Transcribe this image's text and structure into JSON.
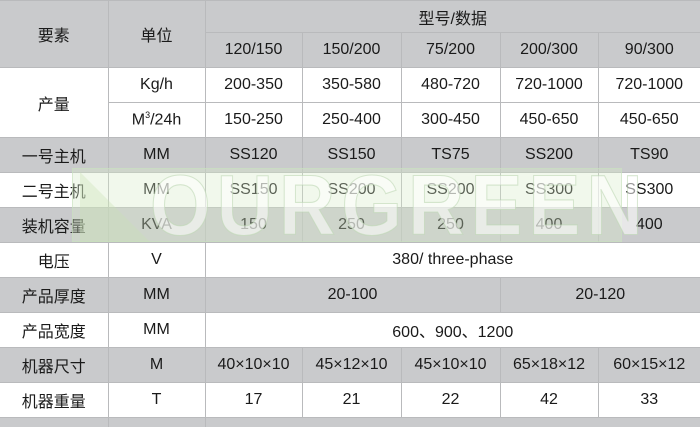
{
  "watermark": "OURGREEN",
  "header": {
    "element": "要素",
    "unit": "单位",
    "model_data": "型号/数据",
    "models": [
      "120/150",
      "150/200",
      "75/200",
      "200/300",
      "90/300"
    ]
  },
  "output": {
    "label": "产量",
    "rows": [
      {
        "unit": "Kg/h",
        "values": [
          "200-350",
          "350-580",
          "480-720",
          "720-1000",
          "720-1000"
        ]
      },
      {
        "unit_base": "M",
        "unit_sup": "3",
        "unit_rest": "/24h",
        "values": [
          "150-250",
          "250-400",
          "300-450",
          "450-650",
          "450-650"
        ]
      }
    ]
  },
  "rows": [
    {
      "label": "一号主机",
      "unit": "MM",
      "values": [
        "SS120",
        "SS150",
        "TS75",
        "SS200",
        "TS90"
      ]
    },
    {
      "label": "二号主机",
      "unit": "MM",
      "values": [
        "SS150",
        "SS200",
        "SS200",
        "SS300",
        "SS300"
      ]
    },
    {
      "label": "装机容量",
      "unit": "KVA",
      "values": [
        "150",
        "250",
        "250",
        "400",
        "400"
      ]
    }
  ],
  "voltage": {
    "label": "电压",
    "unit": "V",
    "value": "380/ three-phase"
  },
  "thickness": {
    "label": "产品厚度",
    "unit": "MM",
    "values": [
      "20-100",
      "20-120"
    ]
  },
  "width": {
    "label": "产品宽度",
    "unit": "MM",
    "value": "600、900、1200"
  },
  "rows2": [
    {
      "label": "机器尺寸",
      "unit": "M",
      "values": [
        "40×10×10",
        "45×12×10",
        "45×10×10",
        "65×18×12",
        "60×15×12"
      ]
    },
    {
      "label": "机器重量",
      "unit": "T",
      "values": [
        "17",
        "21",
        "22",
        "42",
        "33"
      ]
    }
  ]
}
